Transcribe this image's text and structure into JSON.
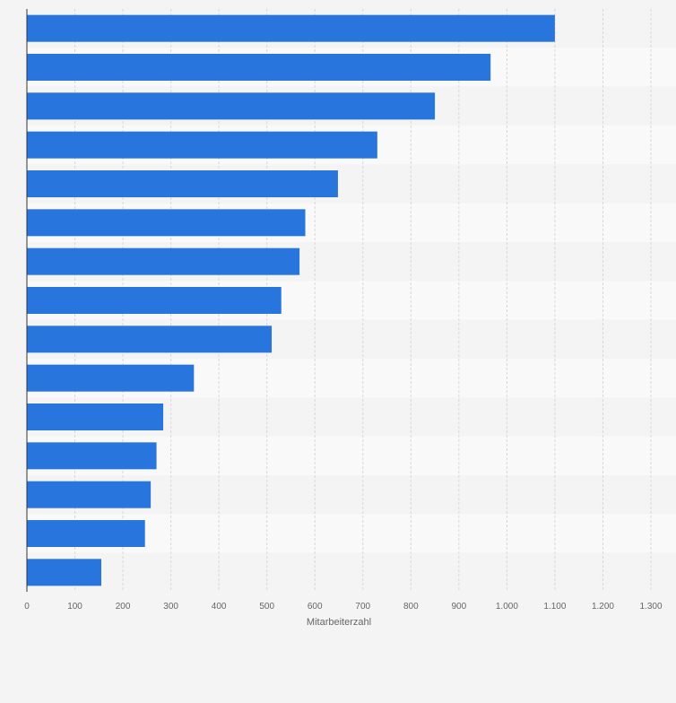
{
  "chart_data": {
    "type": "bar",
    "orientation": "horizontal",
    "categories": [
      "",
      "",
      "",
      "",
      "",
      "",
      "",
      "",
      "",
      "",
      "",
      "",
      "",
      "",
      ""
    ],
    "values": [
      1100,
      966,
      850,
      730,
      648,
      580,
      568,
      530,
      510,
      348,
      284,
      270,
      258,
      246,
      155
    ],
    "xlabel": "Mitarbeiterzahl",
    "xlim": [
      0,
      1300
    ],
    "x_ticks": [
      0,
      100,
      200,
      300,
      400,
      500,
      600,
      700,
      800,
      900,
      1000,
      1100,
      1200,
      1300
    ],
    "x_tick_labels": [
      "0",
      "100",
      "200",
      "300",
      "400",
      "500",
      "600",
      "700",
      "800",
      "900",
      "1.000",
      "1.100",
      "1.200",
      "1.300"
    ],
    "grid": true,
    "bar_color": "#2876dd",
    "background_color": "#f4f4f4",
    "band_colors": [
      "#f4f4f4",
      "#f9f9f9"
    ],
    "grid_color": "#d8d8d8",
    "axis_color": "#333333",
    "tick_label_color": "#666666"
  }
}
